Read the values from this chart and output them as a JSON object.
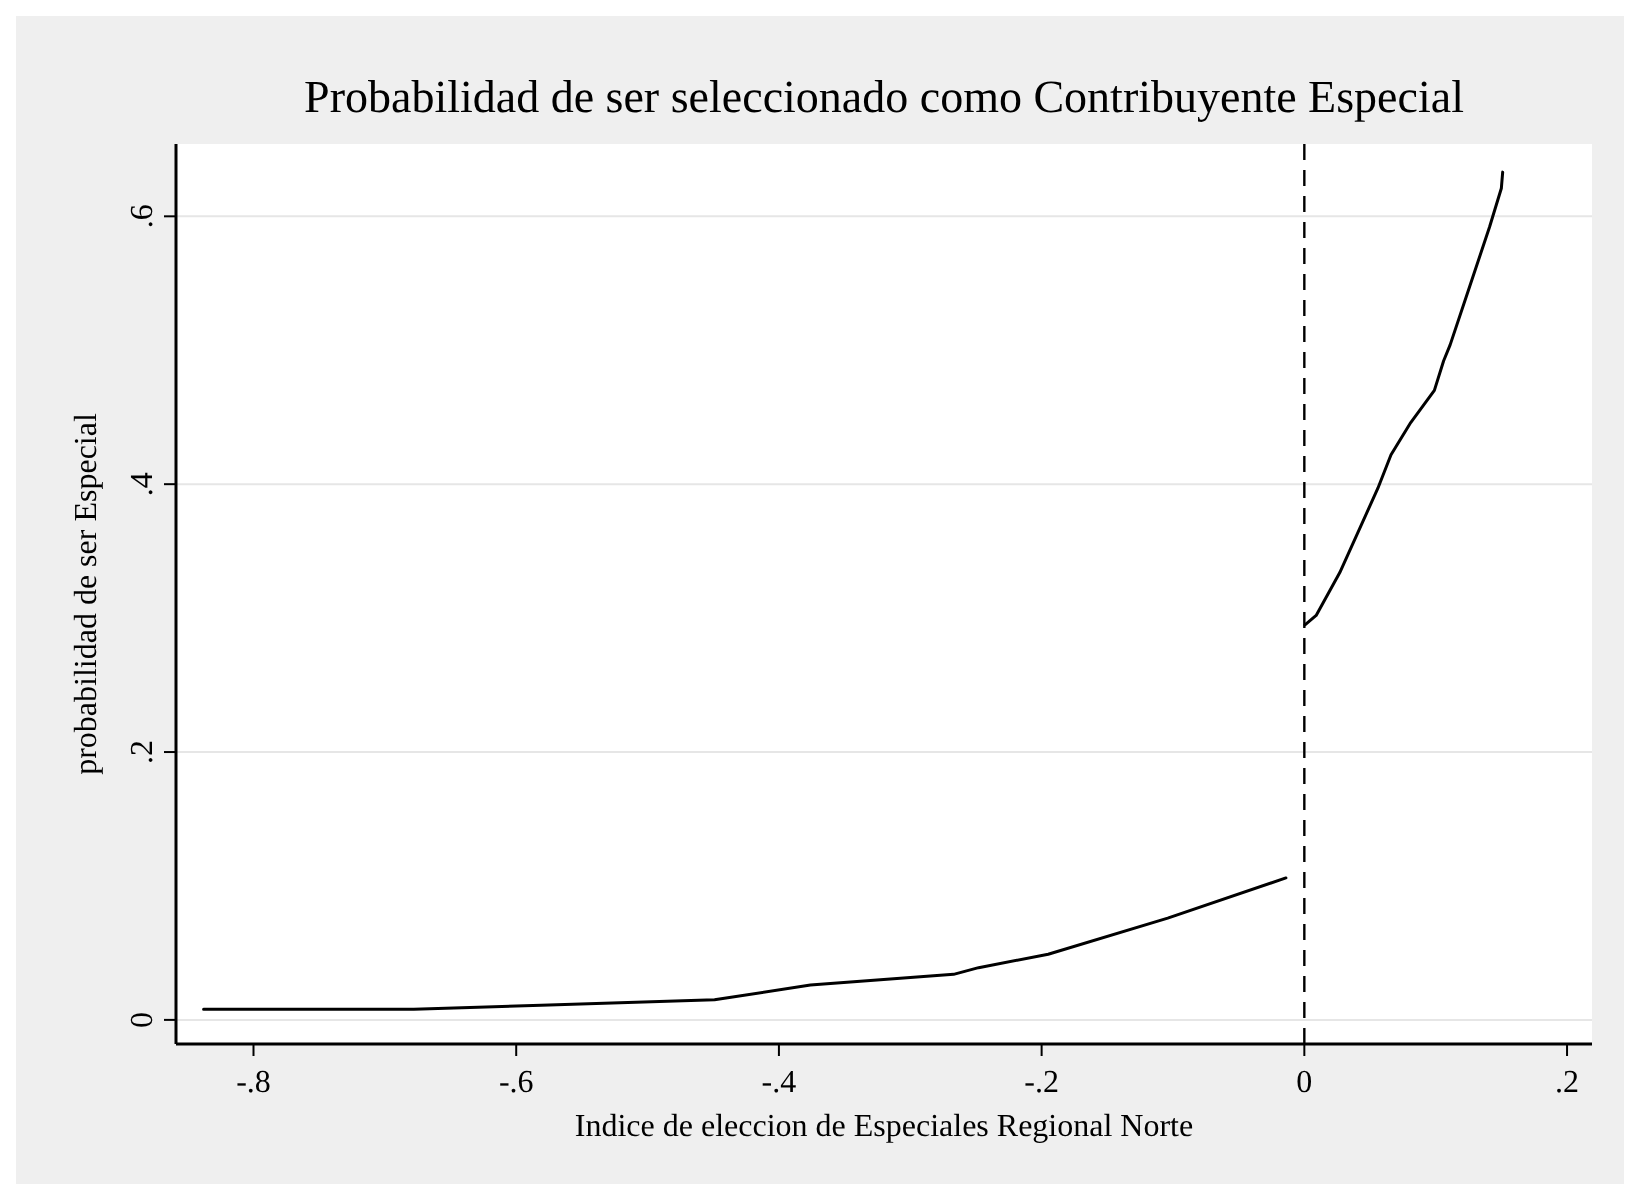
{
  "chart_data": {
    "type": "line",
    "title": "Probabilidad de ser seleccionado como Contribuyente Especial",
    "xlabel": "Indice de eleccion de Especiales Regional Norte",
    "ylabel": "probabilidad de ser Especial",
    "xlim": [
      -0.859,
      0.219
    ],
    "ylim": [
      -0.018,
      0.654
    ],
    "xticks": [
      {
        "value": -0.8,
        "label": "-.8"
      },
      {
        "value": -0.6,
        "label": "-.6"
      },
      {
        "value": -0.4,
        "label": "-.4"
      },
      {
        "value": -0.2,
        "label": "-.2"
      },
      0,
      {
        "value": 0.2,
        "label": ".2"
      }
    ],
    "yticks": [
      0,
      {
        "value": 0.2,
        "label": ".2"
      },
      {
        "value": 0.4,
        "label": ".4"
      },
      {
        "value": 0.6,
        "label": ".6"
      }
    ],
    "grid": "y",
    "marker": "none",
    "line_style": "solid",
    "series": [
      {
        "color": "#000000",
        "x": [
          -0.838,
          -0.678,
          -0.581,
          -0.449,
          -0.376,
          -0.267,
          -0.248,
          -0.195,
          -0.104,
          -0.014
        ],
        "values": [
          0.008,
          0.008,
          0.011,
          0.015,
          0.026,
          0.034,
          0.039,
          0.049,
          0.076,
          0.106
        ]
      },
      {
        "color": "#000000",
        "x": [
          0.0005,
          0.009,
          0.027,
          0.056,
          0.066,
          0.081,
          0.099,
          0.106,
          0.111,
          0.126,
          0.141,
          0.15,
          0.151
        ],
        "values": [
          0.295,
          0.302,
          0.334,
          0.397,
          0.422,
          0.446,
          0.47,
          0.492,
          0.504,
          0.548,
          0.592,
          0.621,
          0.633
        ]
      }
    ],
    "ref_lines": [
      {
        "axis": "x",
        "value": 0,
        "color": "#000000",
        "line_style": "dashed"
      }
    ]
  }
}
